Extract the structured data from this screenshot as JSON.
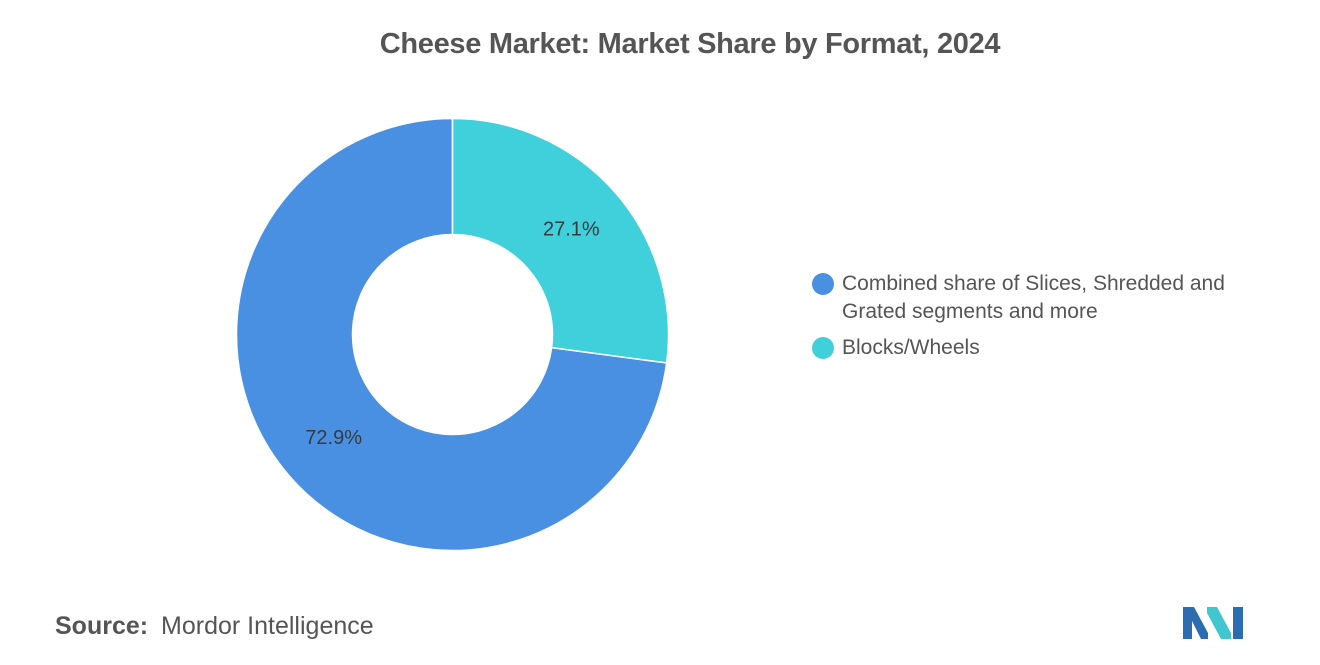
{
  "chart_data": {
    "type": "pie",
    "style": "donut",
    "title": "Cheese Market: Market Share by Format, 2024",
    "categories": [
      "Combined share of Slices, Shredded and Grated segments and more",
      "Blocks/Wheels"
    ],
    "values": [
      72.9,
      27.1
    ],
    "labels": [
      "72.9%",
      "27.1%"
    ],
    "colors": [
      "#4a90e2",
      "#40d0dc"
    ],
    "legend_position": "right"
  },
  "legend": {
    "items": [
      {
        "label": "Combined share of Slices, Shredded and Grated segments and more",
        "color": "#4a90e2"
      },
      {
        "label": "Blocks/Wheels",
        "color": "#40d0dc"
      }
    ]
  },
  "source": {
    "label": "Source:",
    "value": "Mordor Intelligence"
  },
  "logo": {
    "icon": "mordor-intelligence-logo",
    "colors": [
      "#2b6db0",
      "#41c6cf"
    ]
  }
}
